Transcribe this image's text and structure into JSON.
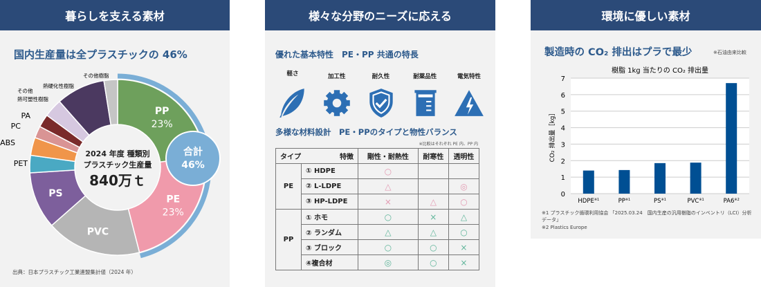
{
  "panel1": {
    "header": "暮らしを支える素材",
    "title": "国内生産量は全プラスチックの 46%",
    "center_line1": "2024 年度 種類別",
    "center_line2": "プラスチック生産量",
    "center_value": "840万ｔ",
    "total_label": "合計",
    "total_value": "46%",
    "source": "出典：日本プラスチック工業連盟集計値（2024 年）"
  },
  "panel2": {
    "header": "様々な分野のニーズに応える",
    "subtitle1": "優れた基本特性　PE・PP 共通の特長",
    "features": [
      {
        "label": "軽さ",
        "icon": "feather-icon"
      },
      {
        "label": "加工性",
        "icon": "gear-icon"
      },
      {
        "label": "耐久性",
        "icon": "shield-check-icon"
      },
      {
        "label": "耐薬品性",
        "icon": "beaker-icon"
      },
      {
        "label": "電気特性",
        "icon": "lightning-icon"
      }
    ],
    "subtitle2": "多様な材料設計　PE・PPのタイプと物性バランス",
    "note": "※比較はそれぞれ PE 内、PP 内",
    "table": {
      "h_type": "タイプ",
      "h_feature": "特徴",
      "h_cols": [
        "剛性・耐熱性",
        "耐寒性",
        "透明性"
      ],
      "groups": [
        {
          "name": "PE",
          "rows": [
            {
              "name": "① HDPE",
              "v": [
                "○",
                "",
                ""
              ]
            },
            {
              "name": "② L-LDPE",
              "v": [
                "△",
                "",
                "◎"
              ]
            },
            {
              "name": "③ HP-LDPE",
              "v": [
                "×",
                "△",
                "○"
              ]
            }
          ]
        },
        {
          "name": "PP",
          "rows": [
            {
              "name": "① ホモ",
              "v": [
                "○",
                "×",
                "△"
              ]
            },
            {
              "name": "② ランダム",
              "v": [
                "△",
                "△",
                "○"
              ]
            },
            {
              "name": "③ ブロック",
              "v": [
                "○",
                "○",
                "×"
              ]
            },
            {
              "name": "④複合材",
              "v": [
                "◎",
                "○",
                "×"
              ]
            }
          ]
        }
      ]
    }
  },
  "panel3": {
    "header": "環境に優しい素材",
    "title": "製造時の CO₂ 排出はプラで最少",
    "title_note": "※石油由来比較",
    "footnote1": "※1 プラスチック循環利用協会 「2025.03.24　国内生産の汎用樹脂のインベントリ（LCI）分析データ」",
    "footnote2": "※2  Plastics Europe"
  },
  "chart_data": [
    {
      "type": "pie",
      "donut": true,
      "slices": [
        {
          "label": "PP",
          "value": 23,
          "pct_label": "23%",
          "color": "#6ea05c"
        },
        {
          "label": "PE",
          "value": 23,
          "pct_label": "23%",
          "color": "#f09aab"
        },
        {
          "label": "PVC",
          "value": 17.5,
          "color": "#b5b5b5"
        },
        {
          "label": "PS",
          "value": 10.5,
          "color": "#7d5f9c"
        },
        {
          "label": "PET",
          "value": 3.2,
          "color": "#4aa9c3"
        },
        {
          "label": "ABS",
          "value": 3.3,
          "color": "#f0954a"
        },
        {
          "label": "PC",
          "value": 2.2,
          "color": "#d99494"
        },
        {
          "label": "PA",
          "value": 2.4,
          "color": "#7a2a2a"
        },
        {
          "label": "その他\n熱可塑性樹脂",
          "value": 3.4,
          "color": "#d6c8e0"
        },
        {
          "label": "熱硬化性樹脂",
          "value": 9,
          "color": "#4b3960"
        },
        {
          "label": "その他樹脂",
          "value": 2.5,
          "color": "#c5c5c5"
        }
      ],
      "highlight_color": "#7aaed6"
    },
    {
      "type": "bar",
      "title": "樹脂 1kg 当たりの CO₂ 排出量",
      "ylabel": "CO₂ 排出量［kg］",
      "categories": [
        "HDPE",
        "PP",
        "PS",
        "PVC",
        "PA6"
      ],
      "notes": [
        "※1",
        "※1",
        "※1",
        "※1",
        "※2"
      ],
      "values": [
        1.4,
        1.43,
        1.85,
        1.88,
        6.7
      ],
      "ylim": [
        0,
        7
      ],
      "yticks": [
        0,
        1,
        2,
        3,
        4,
        5,
        6,
        7
      ],
      "grid": true,
      "color": "#004f93"
    }
  ]
}
